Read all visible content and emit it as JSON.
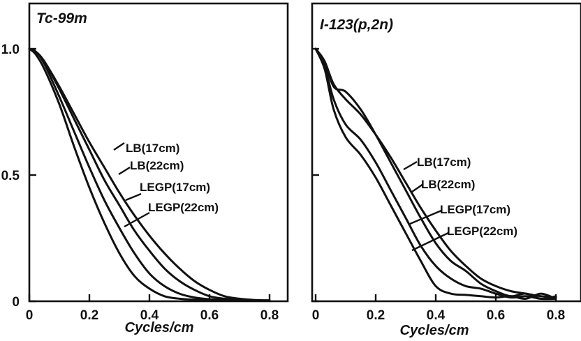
{
  "chart_data": [
    {
      "type": "line",
      "title": "Tc-99m",
      "xlabel": "Cycles/cm",
      "ylabel": "",
      "xlim": [
        0,
        0.85
      ],
      "ylim": [
        0,
        1.07
      ],
      "xticks": [
        "0",
        "0.2",
        "0.4",
        "0.6",
        "0.8"
      ],
      "yticks": [
        "0",
        "0.5",
        "1.0"
      ],
      "series": [
        {
          "name": "LB(17cm)",
          "x": [
            0,
            0.02,
            0.05,
            0.1,
            0.15,
            0.2,
            0.25,
            0.3,
            0.35,
            0.4,
            0.45,
            0.5,
            0.55,
            0.6,
            0.65,
            0.7,
            0.75,
            0.8
          ],
          "y": [
            1.0,
            0.99,
            0.95,
            0.85,
            0.74,
            0.63,
            0.53,
            0.43,
            0.34,
            0.26,
            0.19,
            0.13,
            0.08,
            0.045,
            0.02,
            0.01,
            0.005,
            0.003
          ]
        },
        {
          "name": "LB(22cm)",
          "x": [
            0,
            0.02,
            0.05,
            0.1,
            0.15,
            0.2,
            0.25,
            0.3,
            0.35,
            0.4,
            0.45,
            0.5,
            0.55,
            0.6,
            0.65,
            0.7,
            0.75,
            0.8
          ],
          "y": [
            1.0,
            0.99,
            0.95,
            0.84,
            0.72,
            0.6,
            0.48,
            0.38,
            0.28,
            0.2,
            0.13,
            0.08,
            0.045,
            0.02,
            0.01,
            0.006,
            0.004,
            0.003
          ]
        },
        {
          "name": "LEGP(17cm)",
          "x": [
            0,
            0.02,
            0.05,
            0.1,
            0.15,
            0.2,
            0.25,
            0.3,
            0.35,
            0.4,
            0.45,
            0.5,
            0.55,
            0.6,
            0.65,
            0.7,
            0.75,
            0.8
          ],
          "y": [
            1.0,
            0.99,
            0.94,
            0.81,
            0.67,
            0.53,
            0.4,
            0.29,
            0.19,
            0.11,
            0.06,
            0.03,
            0.015,
            0.008,
            0.005,
            0.004,
            0.003,
            0.003
          ]
        },
        {
          "name": "LEGP(22cm)",
          "x": [
            0,
            0.02,
            0.05,
            0.1,
            0.15,
            0.2,
            0.25,
            0.3,
            0.35,
            0.4,
            0.45,
            0.5,
            0.55,
            0.6,
            0.65,
            0.7,
            0.75,
            0.8
          ],
          "y": [
            1.0,
            0.98,
            0.92,
            0.78,
            0.61,
            0.45,
            0.31,
            0.19,
            0.1,
            0.05,
            0.02,
            0.01,
            0.006,
            0.004,
            0.003,
            0.003,
            0.003,
            0.003
          ]
        }
      ]
    },
    {
      "type": "line",
      "title": "I-123(p,2n)",
      "xlabel": "Cycles/cm",
      "ylabel": "",
      "xlim": [
        0,
        0.85
      ],
      "ylim": [
        0,
        1.07
      ],
      "xticks": [
        "0",
        "0.2",
        "0.4",
        "0.6",
        "0.8"
      ],
      "yticks": [
        "",
        "",
        ""
      ],
      "series": [
        {
          "name": "LB(17cm)",
          "x": [
            0,
            0.03,
            0.06,
            0.1,
            0.15,
            0.2,
            0.25,
            0.3,
            0.35,
            0.4,
            0.45,
            0.5,
            0.55,
            0.6,
            0.65,
            0.7,
            0.75,
            0.8
          ],
          "y": [
            1.0,
            0.95,
            0.86,
            0.8,
            0.74,
            0.66,
            0.57,
            0.47,
            0.37,
            0.28,
            0.2,
            0.14,
            0.09,
            0.06,
            0.04,
            0.03,
            0.02,
            0.015
          ]
        },
        {
          "name": "LB(22cm)",
          "x": [
            0,
            0.03,
            0.06,
            0.1,
            0.15,
            0.2,
            0.25,
            0.3,
            0.35,
            0.4,
            0.45,
            0.5,
            0.55,
            0.6,
            0.65,
            0.7,
            0.75,
            0.8
          ],
          "y": [
            1.0,
            0.95,
            0.85,
            0.83,
            0.76,
            0.66,
            0.55,
            0.44,
            0.33,
            0.23,
            0.16,
            0.12,
            0.07,
            0.04,
            0.02,
            0.03,
            0.01,
            0.02
          ]
        },
        {
          "name": "LEGP(17cm)",
          "x": [
            0,
            0.03,
            0.06,
            0.1,
            0.15,
            0.2,
            0.25,
            0.3,
            0.35,
            0.4,
            0.45,
            0.5,
            0.55,
            0.6,
            0.65,
            0.7,
            0.75,
            0.8
          ],
          "y": [
            1.0,
            0.93,
            0.8,
            0.7,
            0.64,
            0.55,
            0.44,
            0.33,
            0.22,
            0.14,
            0.09,
            0.06,
            0.05,
            0.03,
            0.015,
            0.02,
            0.01,
            0.01
          ]
        },
        {
          "name": "LEGP(22cm)",
          "x": [
            0,
            0.03,
            0.06,
            0.1,
            0.15,
            0.2,
            0.25,
            0.3,
            0.35,
            0.4,
            0.45,
            0.5,
            0.55,
            0.6,
            0.65,
            0.7,
            0.75,
            0.8
          ],
          "y": [
            1.0,
            0.92,
            0.76,
            0.65,
            0.58,
            0.49,
            0.38,
            0.27,
            0.16,
            0.06,
            0.03,
            0.025,
            0.02,
            0.015,
            0.02,
            0.01,
            0.03,
            0.01
          ]
        }
      ]
    }
  ]
}
